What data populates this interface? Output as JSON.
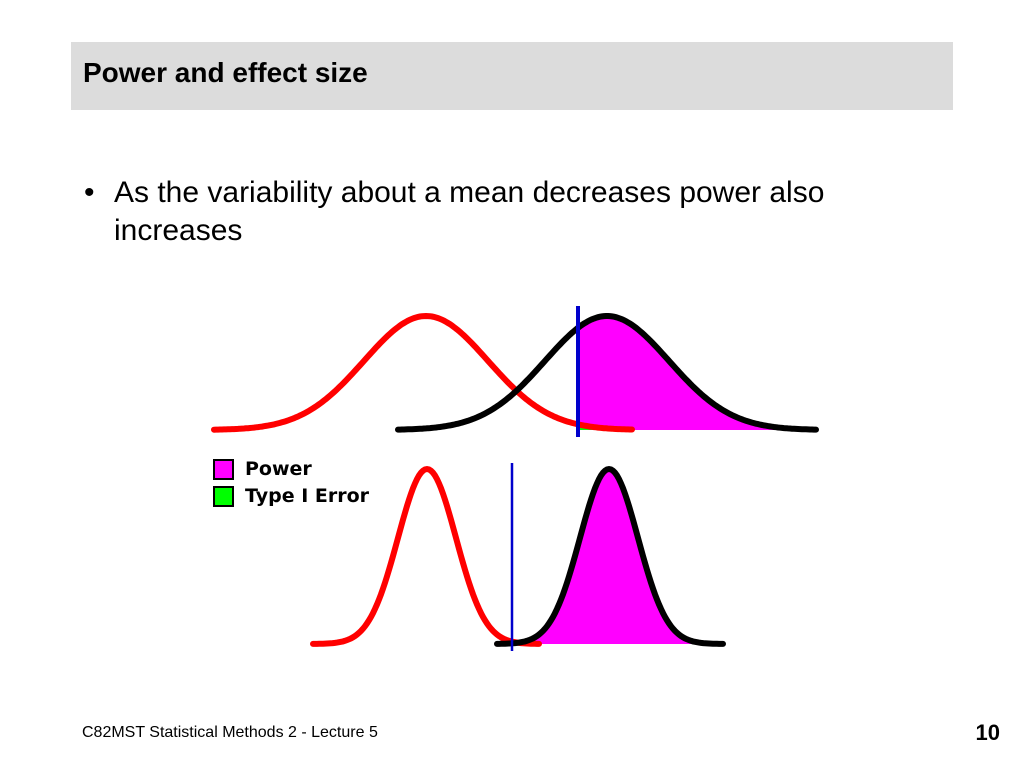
{
  "slide": {
    "title": "Power and effect size",
    "bullet_symbol": "•",
    "bullet": "As the variability about a mean decreases power also increases",
    "footer": "C82MST Statistical Methods 2 - Lecture 5",
    "page_number": "10"
  },
  "legend": [
    {
      "label": "Power",
      "color": "#ff00ff"
    },
    {
      "label": "Type I Error",
      "color": "#00ff00"
    }
  ],
  "colors": {
    "null_distribution": "#ff0000",
    "alternative_distribution": "#000000",
    "criterion_line": "#0000cc",
    "power_fill": "#ff00ff",
    "type1_fill": "#00ff00"
  },
  "panels": [
    {
      "variability": "high"
    },
    {
      "variability": "low"
    }
  ]
}
